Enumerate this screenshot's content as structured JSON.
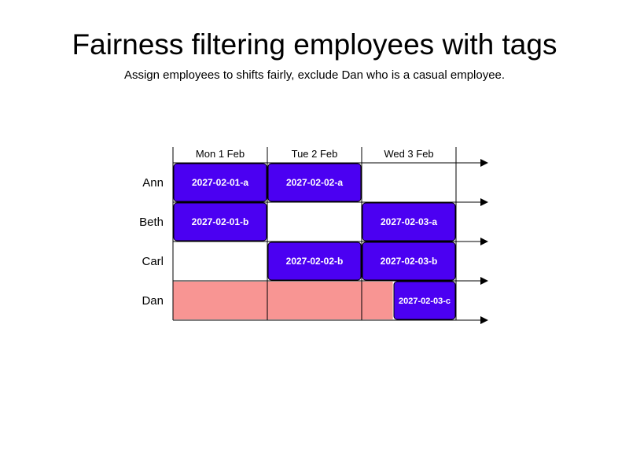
{
  "title": "Fairness filtering employees with tags",
  "subtitle": "Assign employees to shifts fairly, exclude Dan who is a casual employee.",
  "days": [
    "Mon 1 Feb",
    "Tue 2 Feb",
    "Wed 3 Feb"
  ],
  "employees": [
    "Ann",
    "Beth",
    "Carl",
    "Dan"
  ],
  "colors": {
    "shift": "#4b00f2",
    "unavailable": "#f89593",
    "line": "#000000"
  },
  "shifts": [
    {
      "label": "2027-02-01-a",
      "employee": 0,
      "day": 0
    },
    {
      "label": "2027-02-02-a",
      "employee": 0,
      "day": 1
    },
    {
      "label": "2027-02-01-b",
      "employee": 1,
      "day": 0
    },
    {
      "label": "2027-02-03-a",
      "employee": 1,
      "day": 2
    },
    {
      "label": "2027-02-02-b",
      "employee": 2,
      "day": 1
    },
    {
      "label": "2027-02-03-b",
      "employee": 2,
      "day": 2
    },
    {
      "label": "2027-02-03-c",
      "employee": 3,
      "day": 2,
      "partial": true
    }
  ],
  "unavailable": [
    {
      "employee": 3,
      "from_day": 0,
      "to_day": 2.33
    }
  ]
}
